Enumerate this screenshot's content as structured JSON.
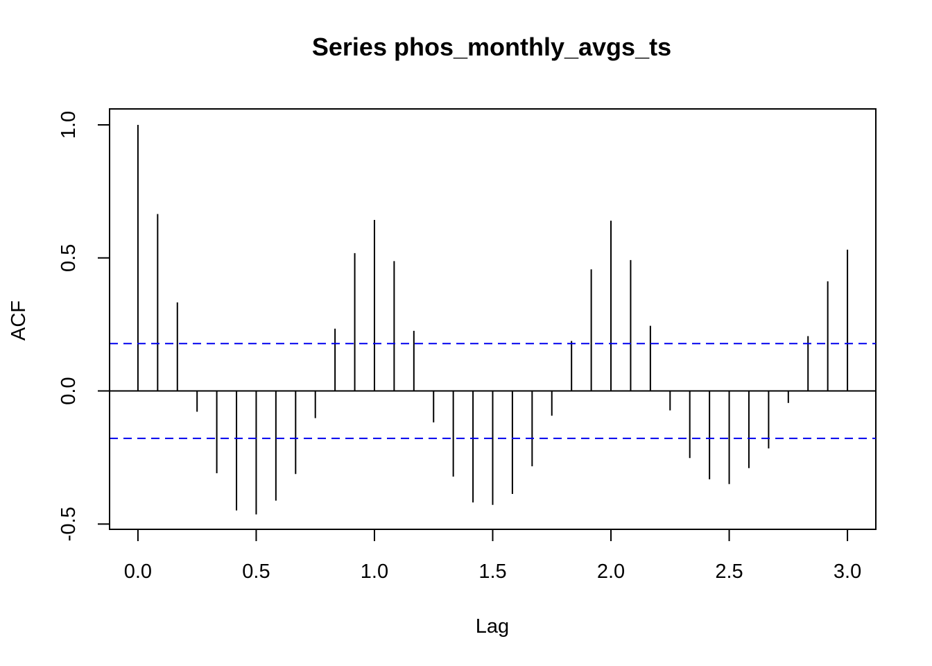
{
  "chart_data": {
    "type": "bar",
    "title": "Series  phos_monthly_avgs_ts",
    "xlabel": "Lag",
    "ylabel": "ACF",
    "xlim": [
      -0.12,
      3.12
    ],
    "ylim": [
      -0.52,
      1.06
    ],
    "x_ticks": [
      "0.0",
      "0.5",
      "1.0",
      "1.5",
      "2.0",
      "2.5",
      "3.0"
    ],
    "y_ticks": [
      "-0.5",
      "0.0",
      "0.5",
      "1.0"
    ],
    "confidence_bound": 0.178,
    "confidence_line_color": "#0000ee",
    "lags": [
      0,
      0.0833,
      0.1667,
      0.25,
      0.3333,
      0.4167,
      0.5,
      0.5833,
      0.6667,
      0.75,
      0.8333,
      0.9167,
      1.0,
      1.0833,
      1.1667,
      1.25,
      1.3333,
      1.4167,
      1.5,
      1.5833,
      1.6667,
      1.75,
      1.8333,
      1.9167,
      2.0,
      2.0833,
      2.1667,
      2.25,
      2.3333,
      2.4167,
      2.5,
      2.5833,
      2.6667,
      2.75,
      2.8333,
      2.9167,
      3.0
    ],
    "values": [
      1.0,
      0.665,
      0.333,
      -0.078,
      -0.309,
      -0.449,
      -0.464,
      -0.412,
      -0.312,
      -0.102,
      0.234,
      0.518,
      0.643,
      0.488,
      0.226,
      -0.118,
      -0.322,
      -0.419,
      -0.428,
      -0.387,
      -0.283,
      -0.093,
      0.188,
      0.457,
      0.64,
      0.492,
      0.245,
      -0.073,
      -0.252,
      -0.332,
      -0.35,
      -0.29,
      -0.216,
      -0.045,
      0.206,
      0.412,
      0.531
    ]
  }
}
